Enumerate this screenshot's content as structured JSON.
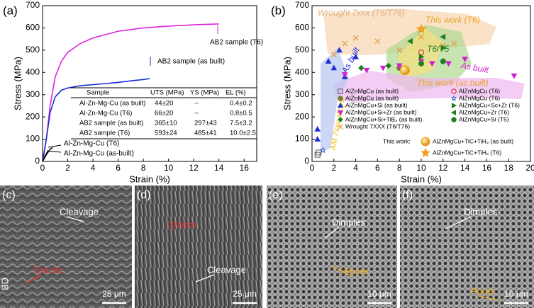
{
  "chart_data": [
    {
      "type": "line",
      "panel": "(a)",
      "xlabel": "Strain (%)",
      "ylabel": "Stress (MPa)",
      "xlim": [
        0,
        17
      ],
      "xticks": [
        0,
        2,
        4,
        6,
        8,
        10,
        12,
        14,
        16
      ],
      "ylim": [
        0,
        700
      ],
      "yticks": [
        0,
        100,
        200,
        300,
        400,
        500,
        600,
        700
      ],
      "series": [
        {
          "name": "AB2 sample (T6)",
          "color": "#e020e0",
          "x": [
            0,
            0.3,
            0.6,
            1,
            1.5,
            2,
            3,
            4,
            6,
            8,
            10,
            12,
            14
          ],
          "values": [
            0,
            100,
            250,
            380,
            450,
            490,
            530,
            555,
            585,
            600,
            608,
            614,
            618
          ]
        },
        {
          "name": "AB2 sample (as built)",
          "color": "#1a2fd0",
          "x": [
            0,
            0.3,
            0.6,
            1,
            1.5,
            2,
            2.5,
            3,
            4,
            5,
            6,
            7,
            8,
            8.5
          ],
          "values": [
            0,
            100,
            220,
            290,
            320,
            330,
            335,
            340,
            345,
            350,
            355,
            362,
            368,
            372
          ]
        },
        {
          "name": "Al-Zn-Mg-Cu (T6)",
          "color": "#000000",
          "x": [
            0,
            0.3,
            0.6,
            0.8
          ],
          "values": [
            0,
            30,
            55,
            62
          ]
        },
        {
          "name": "Al-Zn-Mg-Cu (as-built)",
          "color": "#000000",
          "x": [
            0,
            0.2,
            0.4
          ],
          "values": [
            0,
            25,
            44
          ]
        }
      ],
      "table": {
        "header": [
          "Sample",
          "UTS (MPa)",
          "YS (MPa)",
          "EL (%)"
        ],
        "rows": [
          [
            "Al-Zn-Mg-Cu (as built)",
            "44±20",
            "--",
            "0.4±0.2"
          ],
          [
            "Al-Zn-Mg-Cu (T6)",
            "66±20",
            "--",
            "0.8±0.5"
          ],
          [
            "AB2 sample (as built)",
            "365±10",
            "297±43",
            "7.5±3.2"
          ],
          [
            "AB2 sample (T6)",
            "593±24",
            "485±41",
            "10.0±2.5"
          ]
        ]
      }
    },
    {
      "type": "scatter",
      "panel": "(b)",
      "xlabel": "Strain (%)",
      "ylabel": "Stress (MPa)",
      "xlim": [
        0,
        20
      ],
      "xticks": [
        0,
        2,
        4,
        6,
        8,
        10,
        12,
        14,
        16,
        18,
        20
      ],
      "ylim": [
        0,
        700
      ],
      "yticks": [
        0,
        100,
        200,
        300,
        400,
        500,
        600,
        700
      ],
      "legend": "lower right",
      "regions": [
        "Wrought 7xxx (T6/T76)",
        "This work (T6)",
        "T6/T5",
        "As built",
        "As built",
        "This work (as built)",
        "AM 7xxx alloys"
      ],
      "this_work_label": "This work:",
      "series": [
        {
          "name": "AlZnMgCu (as built)",
          "color": "#555555",
          "marker": "square",
          "x": [
            0.5,
            0.6
          ],
          "values": [
            30,
            40
          ]
        },
        {
          "name": "AlZnMgCu (as built)",
          "color": "#7a7a20",
          "marker": "circle",
          "x": [
            8,
            12
          ],
          "values": [
            420,
            450
          ]
        },
        {
          "name": "AlZnMgCu+Si (as built)",
          "color": "#2030d0",
          "marker": "triangle",
          "x": [
            0.5,
            0.5,
            1.5,
            2,
            2.5,
            3,
            4
          ],
          "values": [
            145,
            100,
            450,
            420,
            500,
            380,
            470
          ]
        },
        {
          "name": "AlZnMgCu+Si+Zr (as built)",
          "color": "#d020d0",
          "marker": "triangle-down",
          "x": [
            3,
            5,
            6.5,
            8,
            10,
            11,
            12.5,
            14,
            18.5
          ],
          "values": [
            390,
            410,
            420,
            430,
            450,
            440,
            440,
            460,
            385
          ]
        },
        {
          "name": "AlZnMgCu+Si+TiB₂ (as built)",
          "color": "#208020",
          "marker": "diamond",
          "x": [
            4.5,
            7
          ],
          "values": [
            420,
            430
          ]
        },
        {
          "name": "Wrought 7XXX (T6/T76)",
          "color": "#e0a040",
          "marker": "x",
          "x": [
            2,
            3,
            4,
            6,
            8,
            10,
            12,
            13
          ],
          "values": [
            480,
            530,
            555,
            540,
            500,
            560,
            520,
            530
          ]
        },
        {
          "name": "AlZnMgCu (T6)",
          "color": "#d02020",
          "marker": "circle-open",
          "x": [
            10
          ],
          "values": [
            490
          ]
        },
        {
          "name": "AlZnMgCu (T6)",
          "color": "#3060d0",
          "marker": "star-open",
          "x": [
            1
          ],
          "values": [
            50
          ]
        },
        {
          "name": "AlZnMgCu+Sc+Zr (T6)",
          "color": "#208020",
          "marker": "tri-right",
          "x": [
            12,
            10
          ],
          "values": [
            510,
            470
          ]
        },
        {
          "name": "AlZnMgCu+Zr (T6)",
          "color": "#208020",
          "marker": "tri-left",
          "x": [
            12,
            9
          ],
          "values": [
            560,
            540
          ]
        },
        {
          "name": "AlZnMgCu+Si (T5)",
          "color": "#208020",
          "marker": "circle",
          "x": [
            12,
            10
          ],
          "values": [
            450,
            440
          ]
        },
        {
          "name": "AlZnMgCu+TiC+TiH₂ (as built)",
          "color": "#f0a020",
          "marker": "sphere",
          "x": [
            8.5
          ],
          "values": [
            410
          ]
        },
        {
          "name": "AlZnMgCu+TiC+TiH₂ (T6)",
          "color": "#f0a020",
          "marker": "star",
          "x": [
            10
          ],
          "values": [
            595
          ]
        }
      ]
    }
  ],
  "images": [
    {
      "panel": "(c)",
      "annotations": [
        "Cleavage",
        "Cracks",
        "BD"
      ],
      "scale": "25 μm"
    },
    {
      "panel": "(d)",
      "annotations": [
        "Cracks",
        "Cleavage"
      ],
      "scale": "25 μm"
    },
    {
      "panel": "(e)",
      "annotations": [
        "Dimples",
        "Pores"
      ],
      "scale": "10 μm"
    },
    {
      "panel": "(f)",
      "annotations": [
        "Dimples",
        "Pores"
      ],
      "scale": "10 μm"
    }
  ]
}
